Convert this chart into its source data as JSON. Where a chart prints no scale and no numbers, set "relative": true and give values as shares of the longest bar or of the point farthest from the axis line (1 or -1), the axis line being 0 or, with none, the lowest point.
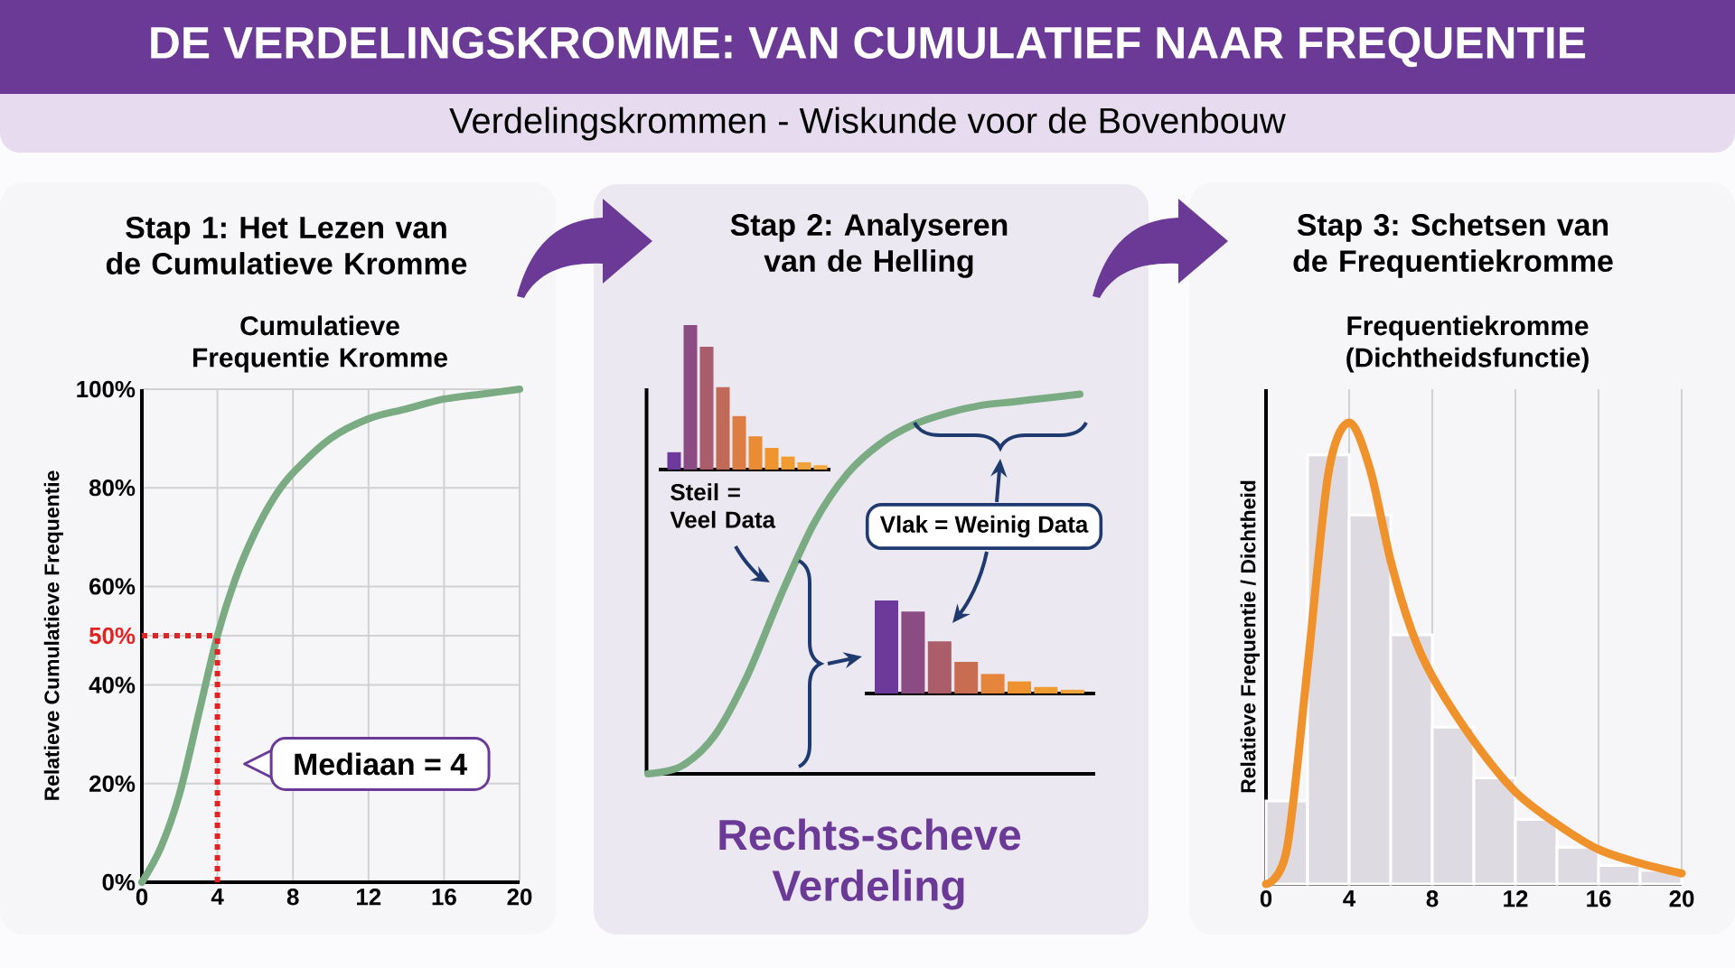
{
  "chart_data": [
    {
      "type": "other",
      "title": "DE VERDELINGSKROMME: VAN CUMULATIEF NAAR FREQUENTIE",
      "subtitle": "Verdelingskrommen - Wiskunde voor de Bovenbouw"
    },
    {
      "type": "line",
      "title": "Stap 1: Het Lezen van de Cumulatieve Kromme",
      "subtitle": "Cumulatieve Frequentie Kromme",
      "ylabel": "Relatieve Cumulatieve Frequentie",
      "x": [
        0,
        1,
        2,
        3,
        4,
        5,
        6,
        7,
        8,
        10,
        12,
        14,
        16,
        18,
        20
      ],
      "values": [
        0,
        7,
        18,
        34,
        50,
        62,
        71,
        78,
        83,
        90,
        94,
        96,
        98,
        99,
        100
      ],
      "color": "#7aab82",
      "xlim": [
        0,
        20
      ],
      "ylim": [
        0,
        100
      ],
      "xticks": [
        0,
        4,
        8,
        12,
        16,
        20
      ],
      "yticks": [
        {
          "value": 0,
          "label": "0%"
        },
        {
          "value": 20,
          "label": "20%"
        },
        {
          "value": 40,
          "label": "40%"
        },
        {
          "value": 50,
          "label": "50%"
        },
        {
          "value": 60,
          "label": "60%"
        },
        {
          "value": 80,
          "label": "80%"
        },
        {
          "value": 100,
          "label": "100%"
        }
      ],
      "grid": true,
      "ref_lines": [
        {
          "axis": "x",
          "value": 4,
          "color": "#e02424",
          "line_style": "dotted"
        },
        {
          "axis": "y",
          "value": 50,
          "color": "#e02424",
          "line_style": "dotted"
        }
      ],
      "annotations": [
        {
          "text": "Mediaan = 4",
          "x": 4,
          "y": 24
        }
      ]
    },
    {
      "type": "line",
      "title": "Stap 2: Analyseren van de Helling",
      "relative": true,
      "categories": [
        null,
        null,
        null,
        null,
        null,
        null,
        null,
        null,
        null,
        null,
        null,
        null,
        null,
        null
      ],
      "values": [
        0,
        0.02,
        0.1,
        0.26,
        0.47,
        0.66,
        0.79,
        0.87,
        0.92,
        0.95,
        0.97,
        0.98,
        0.99,
        1
      ],
      "color": "#7aab82",
      "annotations": [
        "Steil = Veel Data",
        "Vlak = Weinig Data",
        "Rechts-scheve Verdeling"
      ]
    },
    {
      "type": "bar",
      "relative": true,
      "categories": [
        null,
        null,
        null,
        null,
        null,
        null,
        null,
        null,
        null,
        null
      ],
      "values": [
        0.12,
        1,
        0.85,
        0.57,
        0.37,
        0.23,
        0.15,
        0.09,
        0.05,
        0.03
      ],
      "colors": [
        "#6d3a9c",
        "#8c4b82",
        "#a85c6c",
        "#c26a58",
        "#dc7d44",
        "#ea8c34",
        "#ef952e",
        "#f19c33",
        "#f2a23a",
        "#f3a841"
      ]
    },
    {
      "type": "bar",
      "relative": true,
      "categories": [
        null,
        null,
        null,
        null,
        null,
        null,
        null,
        null
      ],
      "values": [
        1,
        0.88,
        0.56,
        0.34,
        0.21,
        0.13,
        0.07,
        0.04
      ],
      "colors": [
        "#6d3a9c",
        "#8c4b82",
        "#ab5e69",
        "#c86d52",
        "#e5853b",
        "#ee922f",
        "#f19b33",
        "#f2a43c"
      ]
    },
    {
      "type": "histogram",
      "title": "Stap 3: Schetsen van de Frequentiekromme",
      "subtitle": "Frequentiekromme (Dichtheidsfunctie)",
      "ylabel": "Relatieve Frequentie / Dichtheid",
      "relative": true,
      "tick_labels": "x",
      "grid": "x",
      "xlim": [
        0,
        20
      ],
      "xticks": [
        0,
        4,
        8,
        12,
        16,
        20
      ],
      "bins": [
        0,
        2,
        4,
        6,
        8,
        10,
        12,
        14,
        16,
        18,
        20
      ],
      "series": [
        {
          "type": "histogram",
          "color": "#dedae2",
          "values": [
            0.18,
            0.93,
            0.8,
            0.54,
            0.34,
            0.23,
            0.14,
            0.08,
            0.04,
            0.03
          ]
        },
        {
          "type": "line",
          "color": "#f0922b",
          "x": [
            0,
            1,
            2,
            3,
            4,
            5,
            6,
            7,
            8,
            10,
            12,
            14,
            16,
            18,
            20
          ],
          "values": [
            0,
            0.075,
            0.47,
            0.89,
            1,
            0.9,
            0.7,
            0.55,
            0.45,
            0.31,
            0.2,
            0.13,
            0.075,
            0.045,
            0.023
          ]
        }
      ]
    }
  ]
}
